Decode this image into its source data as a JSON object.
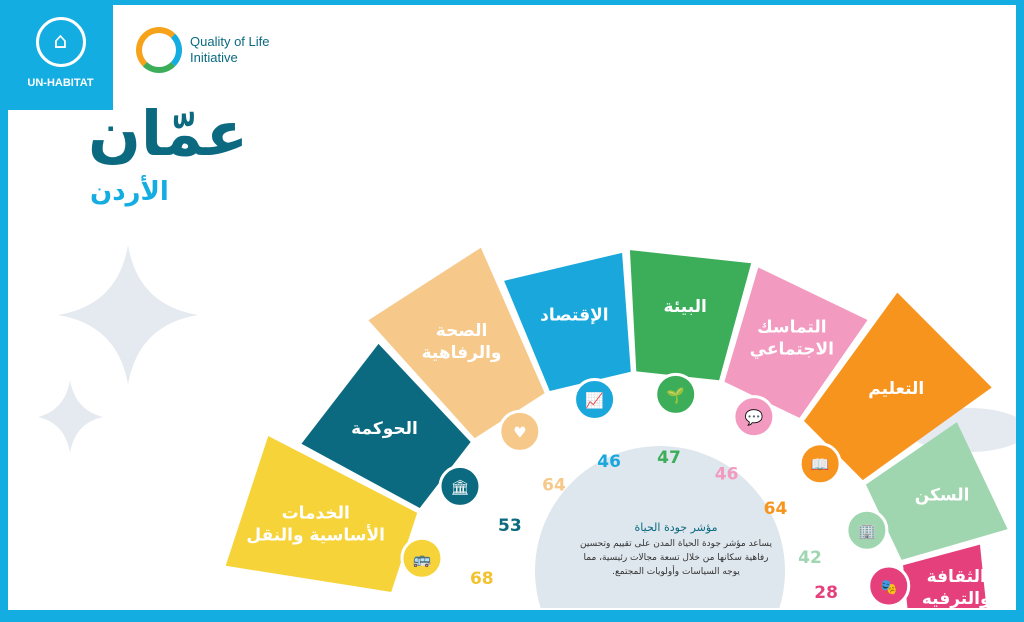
{
  "logos": {
    "un_habitat": "UN-HABITAT",
    "qol_line1": "Quality of Life",
    "qol_line2": "Initiative"
  },
  "title": {
    "city": "عمّان",
    "country": "الأردن"
  },
  "info": {
    "heading": "مؤشر جودة الحياة",
    "body": "يساعد مؤشر جودة الحياة المدن على تقييم وتحسين رفاهية سكانها من خلال تسعة مجالات رئيسية، مما يوجه السياسات وأولويات المجتمع."
  },
  "domains": [
    {
      "label": "الخدمات الأساسية والنقل",
      "score": 68,
      "color": "#f7d33a",
      "icon": "bus-icon",
      "glyph": "🚌"
    },
    {
      "label": "الحوكمة",
      "score": 53,
      "color": "#0b6a80",
      "icon": "bank-icon",
      "glyph": "🏛"
    },
    {
      "label": "الصحة والرفاهية",
      "score": 64,
      "color": "#f6c98a",
      "icon": "heart-plus-icon",
      "glyph": "♥"
    },
    {
      "label": "الإقتصاد",
      "score": 46,
      "color": "#1aa7dc",
      "icon": "chart-icon",
      "glyph": "📈"
    },
    {
      "label": "البيئة",
      "score": 47,
      "color": "#3cae5a",
      "icon": "sprout-icon",
      "glyph": "🌱"
    },
    {
      "label": "التماسك الاجتماعي",
      "score": 46,
      "color": "#f29ac0",
      "icon": "chat-icon",
      "glyph": "💬"
    },
    {
      "label": "التعليم",
      "score": 64,
      "color": "#f7941d",
      "icon": "book-icon",
      "glyph": "📖"
    },
    {
      "label": "السكن",
      "score": 42,
      "color": "#9fd6b0",
      "icon": "building-icon",
      "glyph": "🏢"
    },
    {
      "label": "الثقافة والترفيه",
      "score": 28,
      "color": "#e5407c",
      "icon": "masks-icon",
      "glyph": "🎭"
    }
  ]
}
